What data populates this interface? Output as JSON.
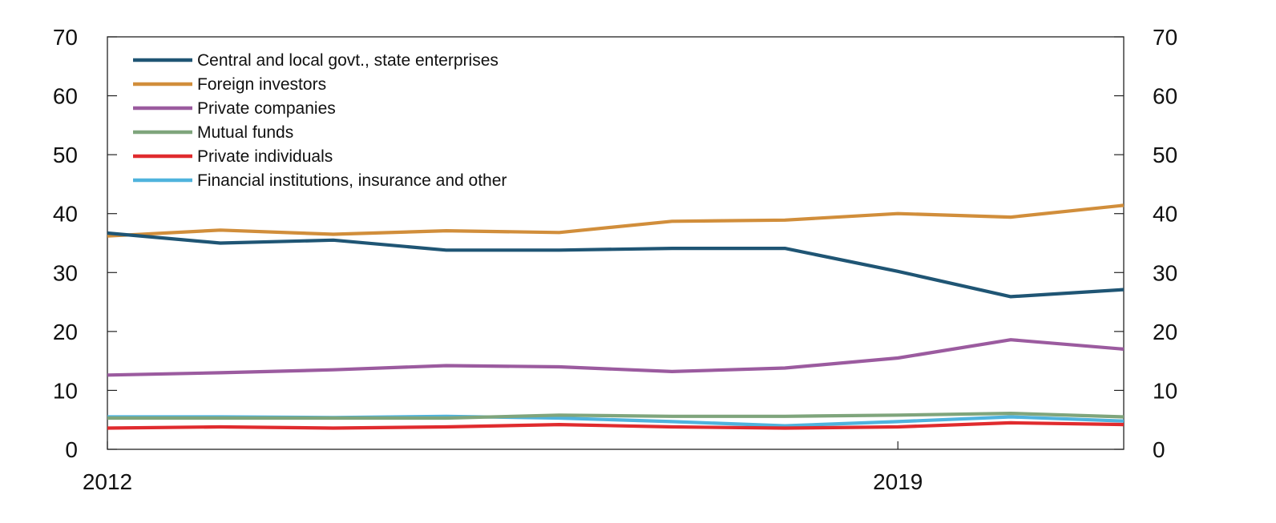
{
  "chart_data": {
    "type": "line",
    "title": "",
    "xlabel": "",
    "ylabel": "",
    "ylim": [
      0,
      70
    ],
    "xlim": [
      2012,
      2021
    ],
    "y_ticks": [
      0,
      10,
      20,
      30,
      40,
      50,
      60,
      70
    ],
    "x_tick_labels": [
      {
        "value": 2012,
        "label": "2012"
      },
      {
        "value": 2019,
        "label": "2019"
      }
    ],
    "legend_position": "top-left",
    "grid": false,
    "x": [
      2012,
      2013,
      2014,
      2015,
      2016,
      2017,
      2018,
      2019,
      2020,
      2021
    ],
    "series": [
      {
        "name": "Central and local govt., state enterprises",
        "color": "#1f5574",
        "values": [
          36.7,
          35.0,
          35.5,
          33.8,
          33.8,
          34.1,
          34.1,
          30.2,
          25.9,
          27.1
        ]
      },
      {
        "name": "Foreign investors",
        "color": "#d18e3b",
        "values": [
          36.2,
          37.2,
          36.5,
          37.1,
          36.8,
          38.7,
          38.9,
          40.0,
          39.4,
          41.4
        ]
      },
      {
        "name": "Private companies",
        "color": "#9b5b9f",
        "values": [
          12.6,
          13.0,
          13.5,
          14.2,
          14.0,
          13.2,
          13.8,
          15.5,
          18.6,
          17.0
        ]
      },
      {
        "name": "Mutual funds",
        "color": "#7fa57c",
        "values": [
          5.3,
          5.3,
          5.3,
          5.3,
          5.8,
          5.6,
          5.6,
          5.8,
          6.1,
          5.5
        ]
      },
      {
        "name": "Private individuals",
        "color": "#e02b2e",
        "values": [
          3.6,
          3.8,
          3.6,
          3.8,
          4.2,
          3.8,
          3.6,
          3.8,
          4.5,
          4.2
        ]
      },
      {
        "name": "Financial institutions, insurance and other",
        "color": "#4fb3dd",
        "values": [
          5.5,
          5.5,
          5.4,
          5.6,
          5.3,
          4.7,
          4.0,
          4.7,
          5.5,
          4.8
        ]
      }
    ]
  }
}
